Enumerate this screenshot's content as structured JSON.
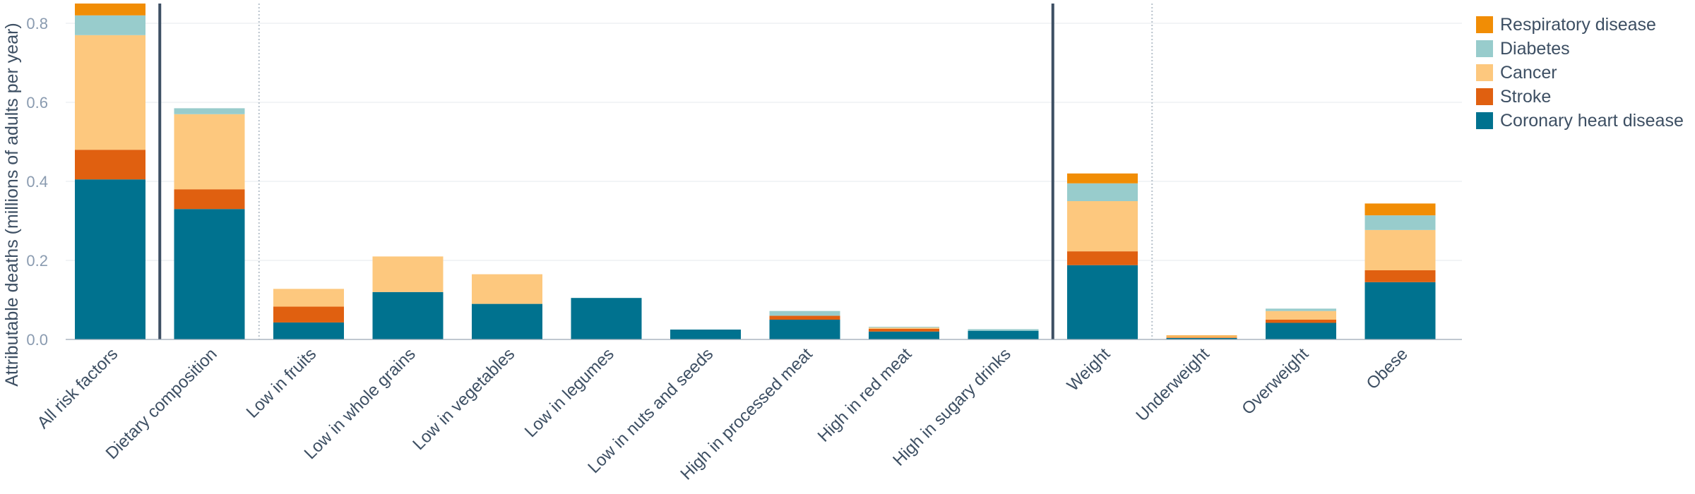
{
  "chart_data": {
    "type": "bar",
    "stacked": true,
    "ylabel": "Attributable deaths (millions of adults per year)",
    "xlabel": "",
    "ylim": [
      0,
      0.85
    ],
    "yticks": [
      0.0,
      0.2,
      0.4,
      0.6,
      0.8
    ],
    "ytick_labels": [
      "0.0",
      "0.2",
      "0.4",
      "0.6",
      "0.8"
    ],
    "grid": true,
    "legend_position": "top-right",
    "categories": [
      "All risk factors",
      "Dietary composition",
      "Low in fruits",
      "Low in whole grains",
      "Low in vegetables",
      "Low in legumes",
      "Low in nuts and seeds",
      "High in processed meat",
      "High in red meat",
      "High in sugary drinks",
      "Weight",
      "Underweight",
      "Overweight",
      "Obese"
    ],
    "separators": [
      {
        "after_category": 0,
        "style": "solid"
      },
      {
        "after_category": 1,
        "style": "dotted"
      },
      {
        "after_category": 9,
        "style": "solid"
      },
      {
        "after_category": 10,
        "style": "dotted"
      }
    ],
    "series": [
      {
        "name": "Coronary heart disease",
        "color": "#00728f",
        "values": [
          0.405,
          0.33,
          0.043,
          0.12,
          0.09,
          0.105,
          0.025,
          0.05,
          0.02,
          0.022,
          0.188,
          0.004,
          0.042,
          0.145
        ]
      },
      {
        "name": "Stroke",
        "color": "#e06010",
        "values": [
          0.075,
          0.05,
          0.04,
          0.0,
          0.0,
          0.0,
          0.0,
          0.01,
          0.007,
          0.0,
          0.035,
          0.001,
          0.008,
          0.03
        ]
      },
      {
        "name": "Cancer",
        "color": "#fdc87e",
        "values": [
          0.29,
          0.19,
          0.045,
          0.09,
          0.075,
          0.0,
          0.0,
          0.0,
          0.003,
          0.0,
          0.127,
          0.003,
          0.022,
          0.102
        ]
      },
      {
        "name": "Diabetes",
        "color": "#98cccc",
        "values": [
          0.05,
          0.015,
          0.0,
          0.0,
          0.0,
          0.0,
          0.0,
          0.012,
          0.002,
          0.004,
          0.045,
          0.0,
          0.006,
          0.037
        ]
      },
      {
        "name": "Respiratory disease",
        "color": "#f18d05",
        "values": [
          0.03,
          0.0,
          0.0,
          0.0,
          0.0,
          0.0,
          0.0,
          0.0,
          0.0,
          0.0,
          0.025,
          0.002,
          0.0,
          0.03
        ]
      }
    ],
    "legend_order": [
      "Respiratory disease",
      "Diabetes",
      "Cancer",
      "Stroke",
      "Coronary heart disease"
    ]
  }
}
